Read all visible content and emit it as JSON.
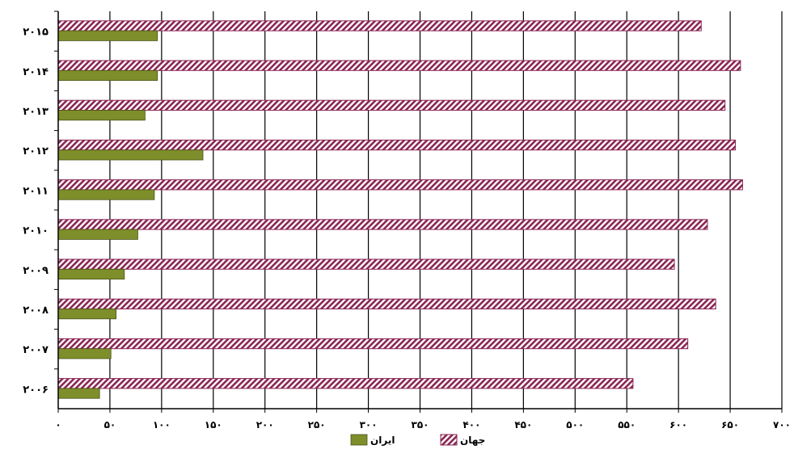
{
  "chart_data": {
    "type": "bar",
    "orientation": "horizontal",
    "categories": [
      "۲۰۰۶",
      "۲۰۰۷",
      "۲۰۰۸",
      "۲۰۰۹",
      "۲۰۱۰",
      "۲۰۱۱",
      "۲۰۱۲",
      "۲۰۱۳",
      "۲۰۱۴",
      "۲۰۱۵"
    ],
    "series": [
      {
        "name": "جهان",
        "values": [
          556,
          609,
          636,
          596,
          628,
          662,
          655,
          645,
          660,
          622
        ],
        "color": "#8a2553",
        "pattern": "diagonal-hatch"
      },
      {
        "name": "ایران",
        "values": [
          40,
          51,
          56,
          64,
          77,
          93,
          140,
          84,
          96,
          96
        ],
        "color": "#7e8e2a"
      }
    ],
    "x_ticks": [
      "۰",
      "۵۰",
      "۱۰۰",
      "۱۵۰",
      "۲۰۰",
      "۲۵۰",
      "۳۰۰",
      "۳۵۰",
      "۴۰۰",
      "۴۵۰",
      "۵۰۰",
      "۵۵۰",
      "۶۰۰",
      "۶۵۰",
      "۷۰۰"
    ],
    "xlim": [
      0,
      700
    ],
    "grid": "vertical",
    "legend_position": "bottom"
  }
}
